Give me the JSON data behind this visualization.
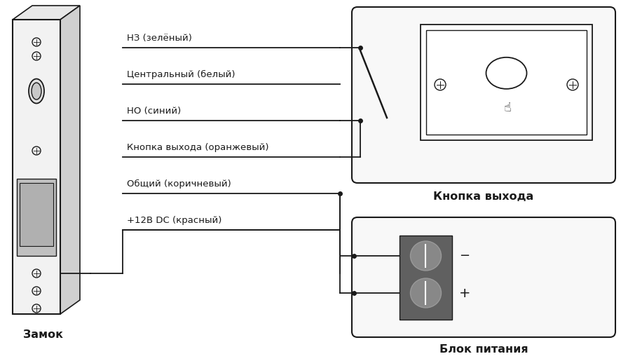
{
  "bg_color": "#ffffff",
  "line_color": "#1a1a1a",
  "wire_labels": [
    "НЗ (зелёный)",
    "Центральный (белый)",
    "НО (синий)",
    "Кнопка выхода (оранжевый)",
    "Общий (коричневый)",
    "+12В DC (красный)"
  ],
  "label_zamok": "Замок",
  "label_knopka": "Кнопка выхода",
  "label_blok": "Блок питания"
}
